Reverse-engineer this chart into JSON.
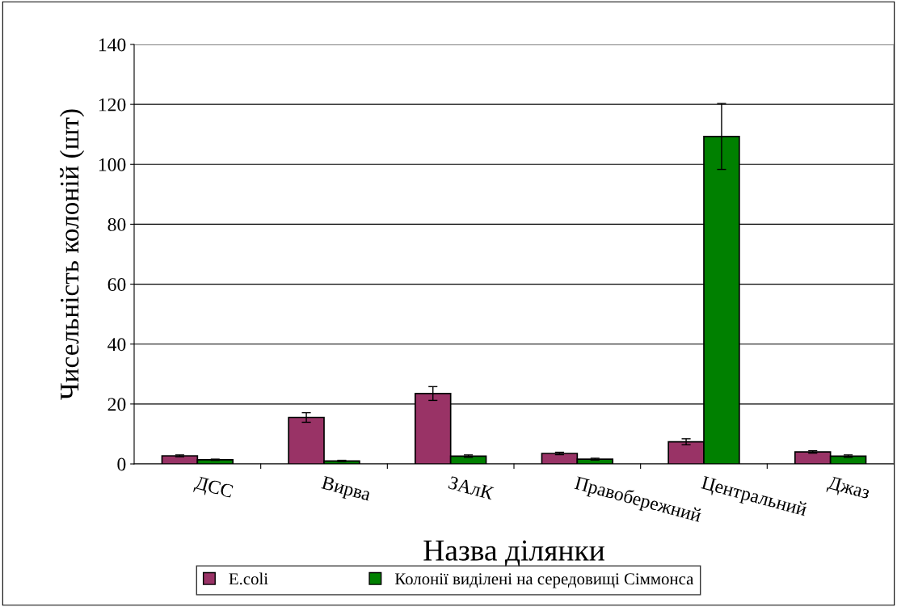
{
  "chart_data": {
    "type": "bar",
    "xlabel": "Назва ділянки",
    "ylabel": "Чисельність колоній (шт)",
    "categories": [
      "ДСС",
      "Вирва",
      "ЗАлК",
      "Правобережний",
      "Центральний",
      "Джаз"
    ],
    "series": [
      {
        "name": "E.coli",
        "color": "#993366",
        "values": [
          2.7,
          15.5,
          23.5,
          3.5,
          7.4,
          4.0
        ],
        "errors": [
          0.3,
          1.6,
          2.3,
          0.4,
          1.0,
          0.4
        ]
      },
      {
        "name": "Колонії виділені на середовищі Сіммонса",
        "color": "#008000",
        "values": [
          1.4,
          1.0,
          2.6,
          1.6,
          109.3,
          2.6
        ],
        "errors": [
          0.2,
          0.2,
          0.4,
          0.3,
          11.0,
          0.4
        ]
      }
    ],
    "ylim": [
      0,
      140
    ],
    "yticks": [
      0,
      20,
      40,
      60,
      80,
      100,
      120,
      140
    ],
    "grid": "y",
    "legend": "bottom"
  }
}
